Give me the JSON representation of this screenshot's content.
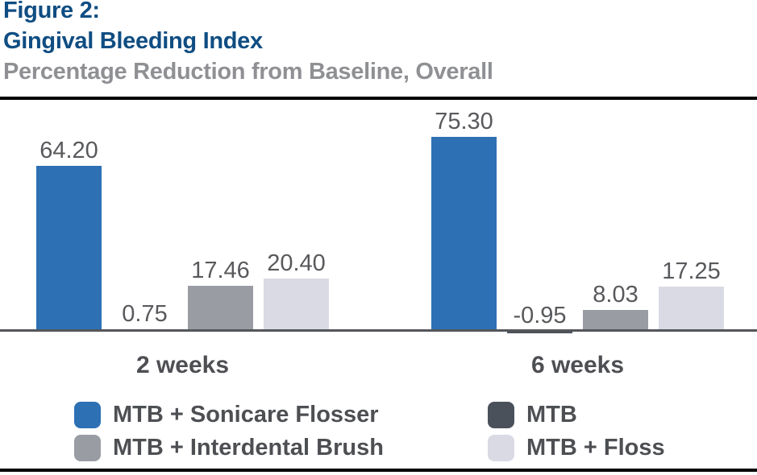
{
  "figure": {
    "title_line1": "Figure 2:",
    "title_line2": "Gingival Bleeding Index",
    "subtitle": "Percentage Reduction from Baseline, Overall"
  },
  "chart_data": {
    "type": "bar",
    "categories": [
      "2 weeks",
      "6 weeks"
    ],
    "series": [
      {
        "name": "MTB + Sonicare Flosser",
        "color": "#2d70b4",
        "values": [
          64.2,
          75.3
        ],
        "value_labels": [
          "64.20",
          "75.30"
        ]
      },
      {
        "name": "MTB",
        "color": "#4b515b",
        "values": [
          0.75,
          -0.95
        ],
        "value_labels": [
          "0.75",
          "-0.95"
        ]
      },
      {
        "name": "MTB + Interdental Brush",
        "color": "#9a9ca4",
        "values": [
          17.46,
          8.03
        ],
        "value_labels": [
          "17.46",
          "8.03"
        ]
      },
      {
        "name": "MTB + Floss",
        "color": "#d9dae3",
        "values": [
          20.4,
          17.25
        ],
        "value_labels": [
          "20.40",
          "17.25"
        ]
      }
    ],
    "xlabel": "",
    "ylabel": "",
    "ylim": [
      -5,
      85
    ],
    "grid": false,
    "axis_ticks_shown": false,
    "value_labels_shown": true,
    "legend_position": "bottom"
  },
  "colors": {
    "title": "#0f4d82",
    "subtitle": "#8f9093",
    "category_label": "#4d4f53",
    "value_label": "#58595c",
    "axis_line": "#54565a",
    "rule_line": "#000000",
    "background": "#ffffff"
  }
}
